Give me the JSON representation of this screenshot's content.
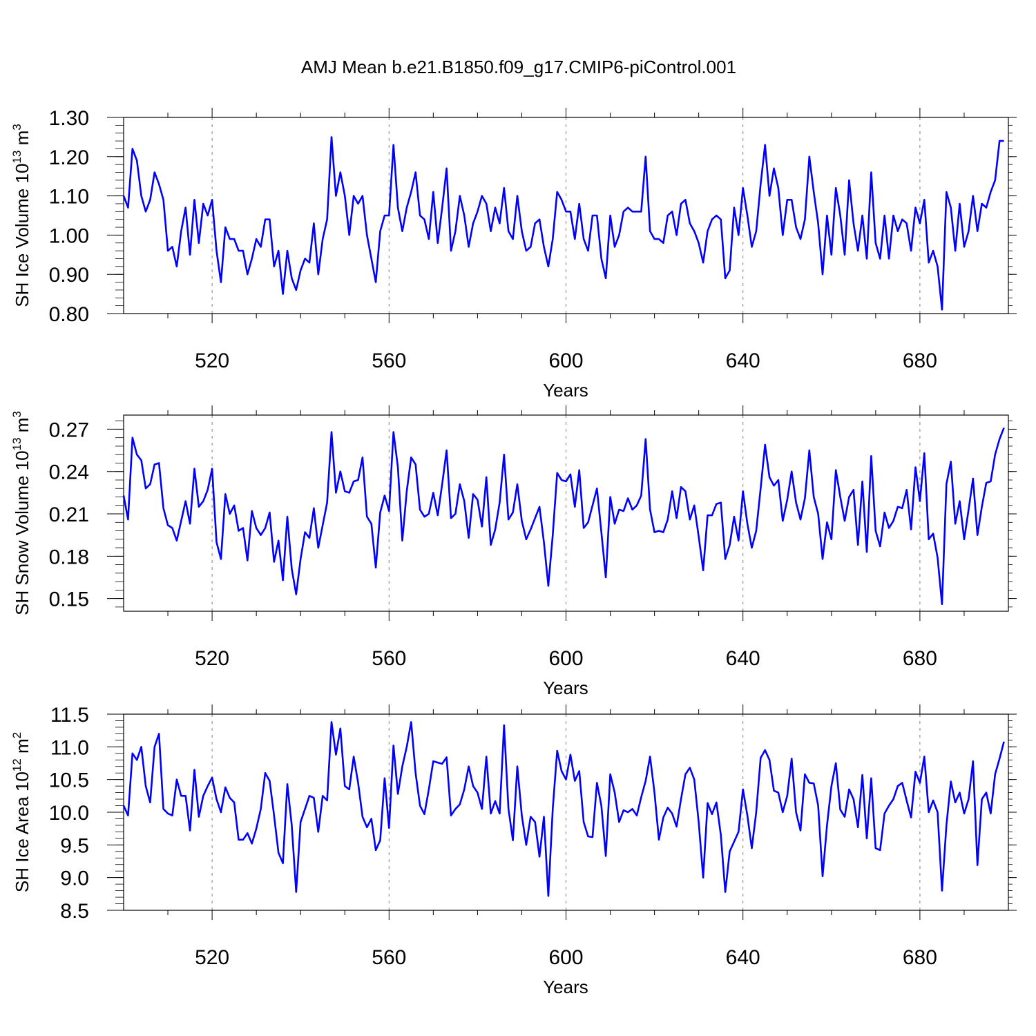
{
  "figure": {
    "title": "AMJ Mean b.e21.B1850.f09_g17.CMIP6-piControl.001",
    "line_color": "#0000ff"
  },
  "chart_data": [
    {
      "type": "line",
      "name": "sh-ice-volume",
      "ylabel_main": "SH Ice Volume 10",
      "ylabel_exp": "13",
      "ylabel_unit": " m",
      "ylabel_unit_exp": "3",
      "xlabel": "Years",
      "xlim": [
        500,
        700
      ],
      "ylim": [
        0.8,
        1.3
      ],
      "xticks": [
        520,
        560,
        600,
        640,
        680
      ],
      "yticks": [
        0.8,
        0.9,
        1.0,
        1.1,
        1.2,
        1.3
      ],
      "ytick_labels": [
        "0.80",
        "0.90",
        "1.00",
        "1.10",
        "1.20",
        "1.30"
      ],
      "grid": "vertical dashed at x ticks",
      "series": [
        {
          "name": "SH Ice Volume",
          "x_start": 500,
          "x_step": 1,
          "values": [
            1.1,
            1.07,
            1.22,
            1.19,
            1.1,
            1.06,
            1.09,
            1.16,
            1.13,
            1.09,
            0.96,
            0.97,
            0.92,
            1.01,
            1.07,
            0.95,
            1.09,
            0.98,
            1.08,
            1.05,
            1.09,
            0.96,
            0.88,
            1.02,
            0.99,
            0.99,
            0.96,
            0.96,
            0.9,
            0.94,
            0.99,
            0.97,
            1.04,
            1.04,
            0.92,
            0.96,
            0.85,
            0.96,
            0.89,
            0.86,
            0.91,
            0.94,
            0.93,
            1.03,
            0.9,
            0.99,
            1.04,
            1.25,
            1.1,
            1.16,
            1.1,
            1.0,
            1.1,
            1.08,
            1.1,
            1.0,
            0.94,
            0.88,
            1.01,
            1.05,
            1.05,
            1.23,
            1.07,
            1.01,
            1.07,
            1.11,
            1.16,
            1.05,
            1.04,
            0.99,
            1.11,
            0.98,
            1.07,
            1.17,
            0.96,
            1.01,
            1.1,
            1.05,
            0.97,
            1.03,
            1.06,
            1.1,
            1.08,
            1.01,
            1.07,
            1.03,
            1.12,
            1.01,
            0.99,
            1.1,
            1.01,
            0.96,
            0.97,
            1.03,
            1.04,
            0.97,
            0.92,
            0.99,
            1.11,
            1.09,
            1.06,
            1.06,
            0.99,
            1.08,
            0.99,
            0.96,
            1.05,
            1.05,
            0.94,
            0.89,
            1.05,
            0.97,
            1.0,
            1.06,
            1.07,
            1.06,
            1.06,
            1.06,
            1.2,
            1.01,
            0.99,
            0.99,
            0.98,
            1.05,
            1.06,
            1.0,
            1.08,
            1.09,
            1.03,
            1.01,
            0.98,
            0.93,
            1.01,
            1.04,
            1.05,
            1.04,
            0.89,
            0.91,
            1.07,
            1.0,
            1.12,
            1.05,
            0.97,
            1.01,
            1.13,
            1.23,
            1.1,
            1.17,
            1.12,
            1.0,
            1.09,
            1.09,
            1.02,
            0.99,
            1.04,
            1.2,
            1.11,
            1.03,
            0.9,
            1.05,
            0.95,
            1.12,
            1.05,
            0.95,
            1.14,
            1.03,
            0.96,
            1.05,
            0.94,
            1.16,
            0.98,
            0.94,
            1.05,
            0.94,
            1.05,
            1.01,
            1.04,
            1.03,
            0.96,
            1.07,
            1.03,
            1.09,
            0.93,
            0.96,
            0.92,
            0.81,
            1.11,
            1.07,
            0.96,
            1.08,
            0.97,
            1.01,
            1.1,
            1.01,
            1.08,
            1.07,
            1.11,
            1.14,
            1.24,
            1.24
          ]
        }
      ]
    },
    {
      "type": "line",
      "name": "sh-snow-volume",
      "ylabel_main": "SH Snow Volume 10",
      "ylabel_exp": "13",
      "ylabel_unit": " m",
      "ylabel_unit_exp": "3",
      "xlabel": "Years",
      "xlim": [
        500,
        700
      ],
      "ylim": [
        0.141,
        0.28
      ],
      "xticks": [
        520,
        560,
        600,
        640,
        680
      ],
      "yticks": [
        0.15,
        0.18,
        0.21,
        0.24,
        0.27
      ],
      "ytick_labels": [
        "0.15",
        "0.18",
        "0.21",
        "0.24",
        "0.27"
      ],
      "grid": "vertical dashed at x ticks",
      "series": [
        {
          "name": "SH Snow Volume",
          "x_start": 500,
          "x_step": 1,
          "values": [
            0.223,
            0.206,
            0.264,
            0.252,
            0.248,
            0.228,
            0.231,
            0.245,
            0.246,
            0.214,
            0.202,
            0.2,
            0.191,
            0.205,
            0.219,
            0.203,
            0.242,
            0.215,
            0.219,
            0.227,
            0.242,
            0.19,
            0.178,
            0.224,
            0.21,
            0.216,
            0.198,
            0.2,
            0.177,
            0.212,
            0.2,
            0.195,
            0.2,
            0.211,
            0.176,
            0.191,
            0.163,
            0.208,
            0.171,
            0.153,
            0.178,
            0.197,
            0.193,
            0.214,
            0.186,
            0.202,
            0.218,
            0.268,
            0.225,
            0.24,
            0.226,
            0.225,
            0.233,
            0.234,
            0.25,
            0.208,
            0.203,
            0.172,
            0.211,
            0.223,
            0.212,
            0.268,
            0.243,
            0.191,
            0.226,
            0.25,
            0.245,
            0.213,
            0.208,
            0.21,
            0.225,
            0.209,
            0.231,
            0.255,
            0.207,
            0.21,
            0.231,
            0.219,
            0.193,
            0.224,
            0.22,
            0.201,
            0.236,
            0.188,
            0.199,
            0.218,
            0.252,
            0.206,
            0.211,
            0.231,
            0.205,
            0.192,
            0.199,
            0.207,
            0.215,
            0.19,
            0.159,
            0.195,
            0.239,
            0.234,
            0.233,
            0.238,
            0.215,
            0.241,
            0.2,
            0.204,
            0.216,
            0.228,
            0.197,
            0.165,
            0.222,
            0.203,
            0.213,
            0.212,
            0.221,
            0.213,
            0.216,
            0.223,
            0.263,
            0.213,
            0.197,
            0.198,
            0.197,
            0.206,
            0.226,
            0.207,
            0.229,
            0.226,
            0.206,
            0.216,
            0.194,
            0.17,
            0.209,
            0.209,
            0.217,
            0.218,
            0.178,
            0.188,
            0.208,
            0.191,
            0.226,
            0.203,
            0.186,
            0.198,
            0.228,
            0.259,
            0.236,
            0.23,
            0.234,
            0.205,
            0.22,
            0.24,
            0.218,
            0.206,
            0.221,
            0.255,
            0.222,
            0.21,
            0.178,
            0.204,
            0.192,
            0.241,
            0.222,
            0.205,
            0.222,
            0.227,
            0.188,
            0.233,
            0.183,
            0.251,
            0.198,
            0.187,
            0.211,
            0.2,
            0.205,
            0.215,
            0.214,
            0.227,
            0.199,
            0.243,
            0.219,
            0.253,
            0.192,
            0.196,
            0.179,
            0.146,
            0.231,
            0.247,
            0.203,
            0.219,
            0.192,
            0.213,
            0.235,
            0.195,
            0.215,
            0.232,
            0.233,
            0.252,
            0.263,
            0.271
          ]
        }
      ]
    },
    {
      "type": "line",
      "name": "sh-ice-area",
      "ylabel_main": "SH Ice Area 10",
      "ylabel_exp": "12",
      "ylabel_unit": " m",
      "ylabel_unit_exp": "2",
      "xlabel": "Years",
      "xlim": [
        500,
        700
      ],
      "ylim": [
        8.5,
        11.5
      ],
      "xticks": [
        520,
        560,
        600,
        640,
        680
      ],
      "yticks": [
        8.5,
        9.0,
        9.5,
        10.0,
        10.5,
        11.0,
        11.5
      ],
      "ytick_labels": [
        "8.5",
        "9.0",
        "9.5",
        "10.0",
        "10.5",
        "11.0",
        "11.5"
      ],
      "grid": "vertical dashed at x ticks",
      "series": [
        {
          "name": "SH Ice Area",
          "x_start": 500,
          "x_step": 1,
          "values": [
            10.1,
            9.95,
            10.9,
            10.8,
            11.0,
            10.4,
            10.15,
            11.0,
            11.2,
            10.05,
            9.98,
            9.95,
            10.5,
            10.25,
            10.25,
            9.72,
            10.65,
            9.93,
            10.25,
            10.4,
            10.53,
            10.2,
            10.0,
            10.38,
            10.22,
            10.15,
            9.58,
            9.58,
            9.68,
            9.52,
            9.75,
            10.05,
            10.6,
            10.48,
            9.95,
            9.38,
            9.22,
            10.43,
            9.8,
            8.78,
            9.85,
            10.05,
            10.25,
            10.22,
            9.7,
            10.25,
            10.18,
            11.38,
            10.88,
            11.28,
            10.4,
            10.35,
            10.85,
            10.45,
            9.93,
            9.77,
            9.9,
            9.42,
            9.57,
            10.52,
            9.76,
            11.02,
            10.28,
            10.7,
            11.0,
            11.38,
            10.6,
            10.1,
            9.97,
            10.35,
            10.78,
            10.76,
            10.74,
            10.84,
            9.95,
            10.05,
            10.12,
            10.35,
            10.7,
            10.4,
            10.3,
            10.05,
            10.85,
            9.98,
            10.17,
            9.98,
            11.33,
            10.05,
            9.57,
            10.7,
            9.95,
            9.5,
            9.93,
            9.85,
            9.32,
            9.93,
            8.72,
            10.05,
            10.94,
            10.63,
            10.5,
            10.88,
            10.48,
            10.63,
            9.85,
            9.63,
            9.62,
            10.45,
            10.1,
            9.33,
            10.58,
            10.3,
            9.85,
            10.03,
            10.0,
            10.05,
            9.95,
            10.23,
            10.48,
            10.85,
            10.3,
            9.58,
            9.92,
            10.07,
            9.98,
            9.78,
            10.2,
            10.58,
            10.68,
            10.5,
            9.85,
            9.0,
            10.14,
            9.97,
            10.15,
            9.65,
            8.78,
            9.4,
            9.55,
            9.7,
            10.35,
            9.95,
            9.45,
            10.0,
            10.83,
            10.95,
            10.8,
            10.33,
            10.3,
            10.0,
            10.25,
            10.82,
            10.0,
            9.72,
            10.58,
            10.45,
            10.44,
            10.1,
            9.02,
            9.8,
            10.4,
            10.75,
            10.04,
            9.93,
            10.35,
            10.2,
            9.77,
            10.57,
            9.6,
            10.52,
            9.45,
            9.42,
            9.98,
            10.1,
            10.2,
            10.4,
            10.45,
            10.18,
            9.92,
            10.62,
            10.45,
            10.85,
            10.0,
            10.18,
            10.0,
            8.8,
            9.8,
            10.47,
            10.15,
            10.3,
            9.98,
            10.2,
            10.78,
            9.19,
            10.2,
            10.3,
            9.98,
            10.58,
            10.82,
            11.08
          ]
        }
      ]
    }
  ]
}
